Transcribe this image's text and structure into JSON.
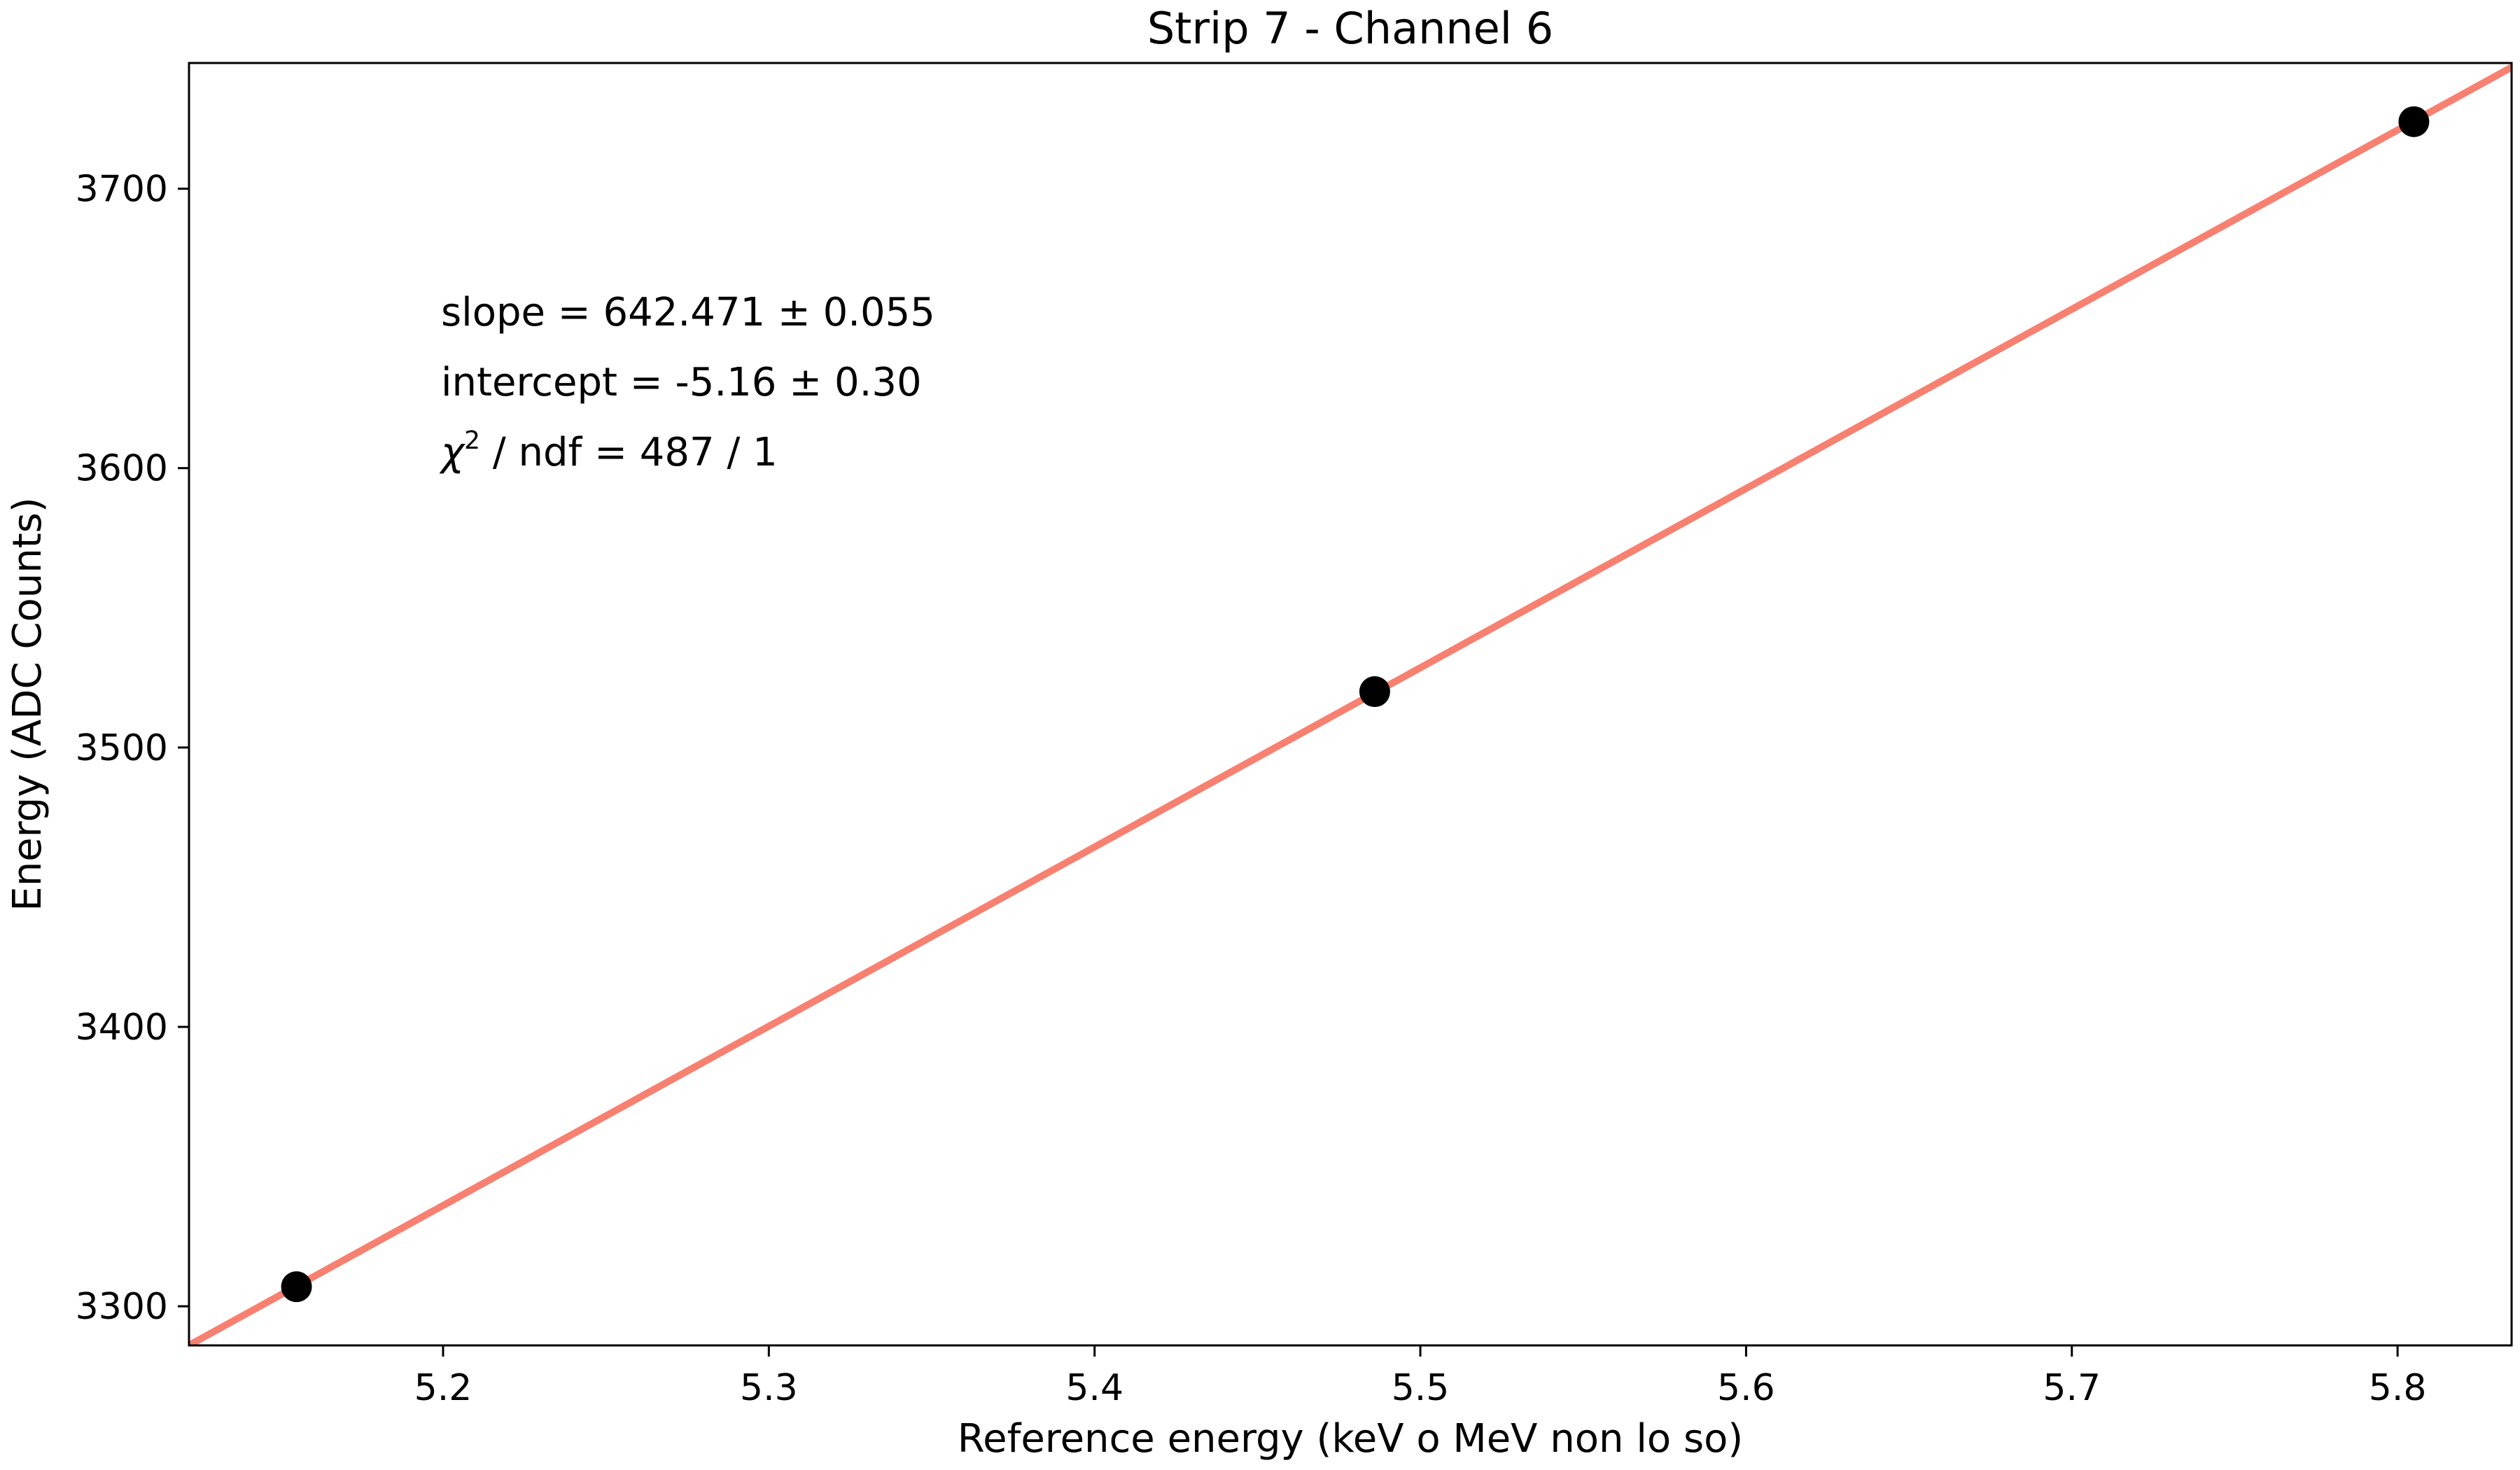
{
  "chart_data": {
    "type": "scatter",
    "title": "Strip 7 - Channel 6",
    "xlabel": "Reference energy (keV o MeV non lo so)",
    "ylabel": "Energy (ADC Counts)",
    "xlim": [
      5.122,
      5.835
    ],
    "ylim": [
      3286,
      3745
    ],
    "xticks": [
      5.2,
      5.3,
      5.4,
      5.5,
      5.6,
      5.7,
      5.8
    ],
    "xtick_labels": [
      "5.2",
      "5.3",
      "5.4",
      "5.5",
      "5.6",
      "5.7",
      "5.8"
    ],
    "yticks": [
      3300,
      3400,
      3500,
      3600,
      3700
    ],
    "ytick_labels": [
      "3300",
      "3400",
      "3500",
      "3600",
      "3700"
    ],
    "grid": false,
    "series": [
      {
        "kind": "points",
        "color": "#000000",
        "x": [
          5.155,
          5.486,
          5.805
        ],
        "y": [
          3307,
          3520,
          3724
        ]
      },
      {
        "kind": "fit-line",
        "color": "#f88070",
        "slope": 642.471,
        "intercept": -5.16
      }
    ],
    "annotations": {
      "slope_text": "slope = 642.471 ± 0.055",
      "intercept_text": "intercept = -5.16 ± 0.30",
      "chi2_symbol": "χ",
      "chi2_power": "2",
      "chi2_rest": " / ndf = 487 / 1"
    }
  }
}
